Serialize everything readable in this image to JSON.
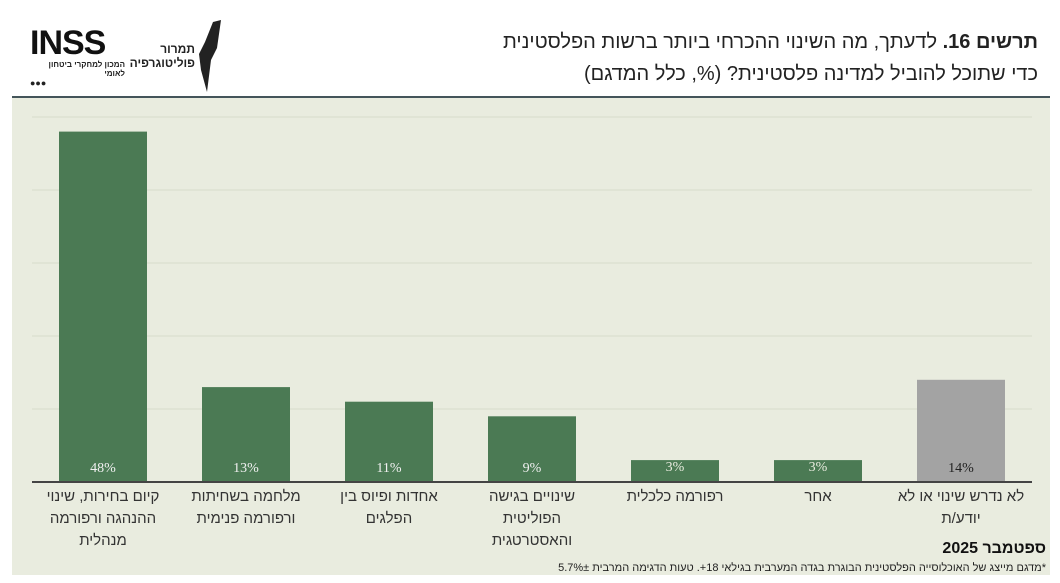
{
  "header": {
    "title_prefix": "תרשים 16.",
    "title_line1": "לדעתך, מה השינוי ההכרחי ביותר ברשות הפלסטינית",
    "title_line2": "כדי שתוכל להוביל למדינה פלסטינית? (%, כלל המדגם)"
  },
  "logos": {
    "inss": "INSS",
    "inss_subtitle": "המכון למחקרי ביטחון לאומי",
    "tamrur": "תמרור פוליטוגרפיה"
  },
  "chart_data": {
    "type": "bar",
    "categories": [
      "קיום בחירות, שינוי ההנהגה ורפורמה מנהלית",
      "מלחמה בשחיתות ורפורמה פנימית",
      "אחדות ופיוס בין הפלגים",
      "שינויים בגישה הפוליטית והאסטרטגית",
      "רפורמה כלכלית",
      "אחר",
      "לא נדרש שינוי או לא יודע/ת"
    ],
    "values": [
      48,
      13,
      11,
      9,
      3,
      3,
      14
    ],
    "data_labels": [
      "48%",
      "13%",
      "11%",
      "9%",
      "3%",
      "3%",
      "14%"
    ],
    "colors": [
      "#4b7a54",
      "#4b7a54",
      "#4b7a54",
      "#4b7a54",
      "#4b7a54",
      "#4b7a54",
      "#a3a3a3"
    ],
    "ylim": [
      0,
      50
    ],
    "grid": true,
    "unit": "%"
  },
  "footer": {
    "date": "ספטמבר 2025",
    "note": "*מדגם מייצג של האוכלוסייה הפלסטינית הבוגרת בגדה המערבית בגילאי 18+. טעות הדגימה המרבית 5.7%±"
  }
}
